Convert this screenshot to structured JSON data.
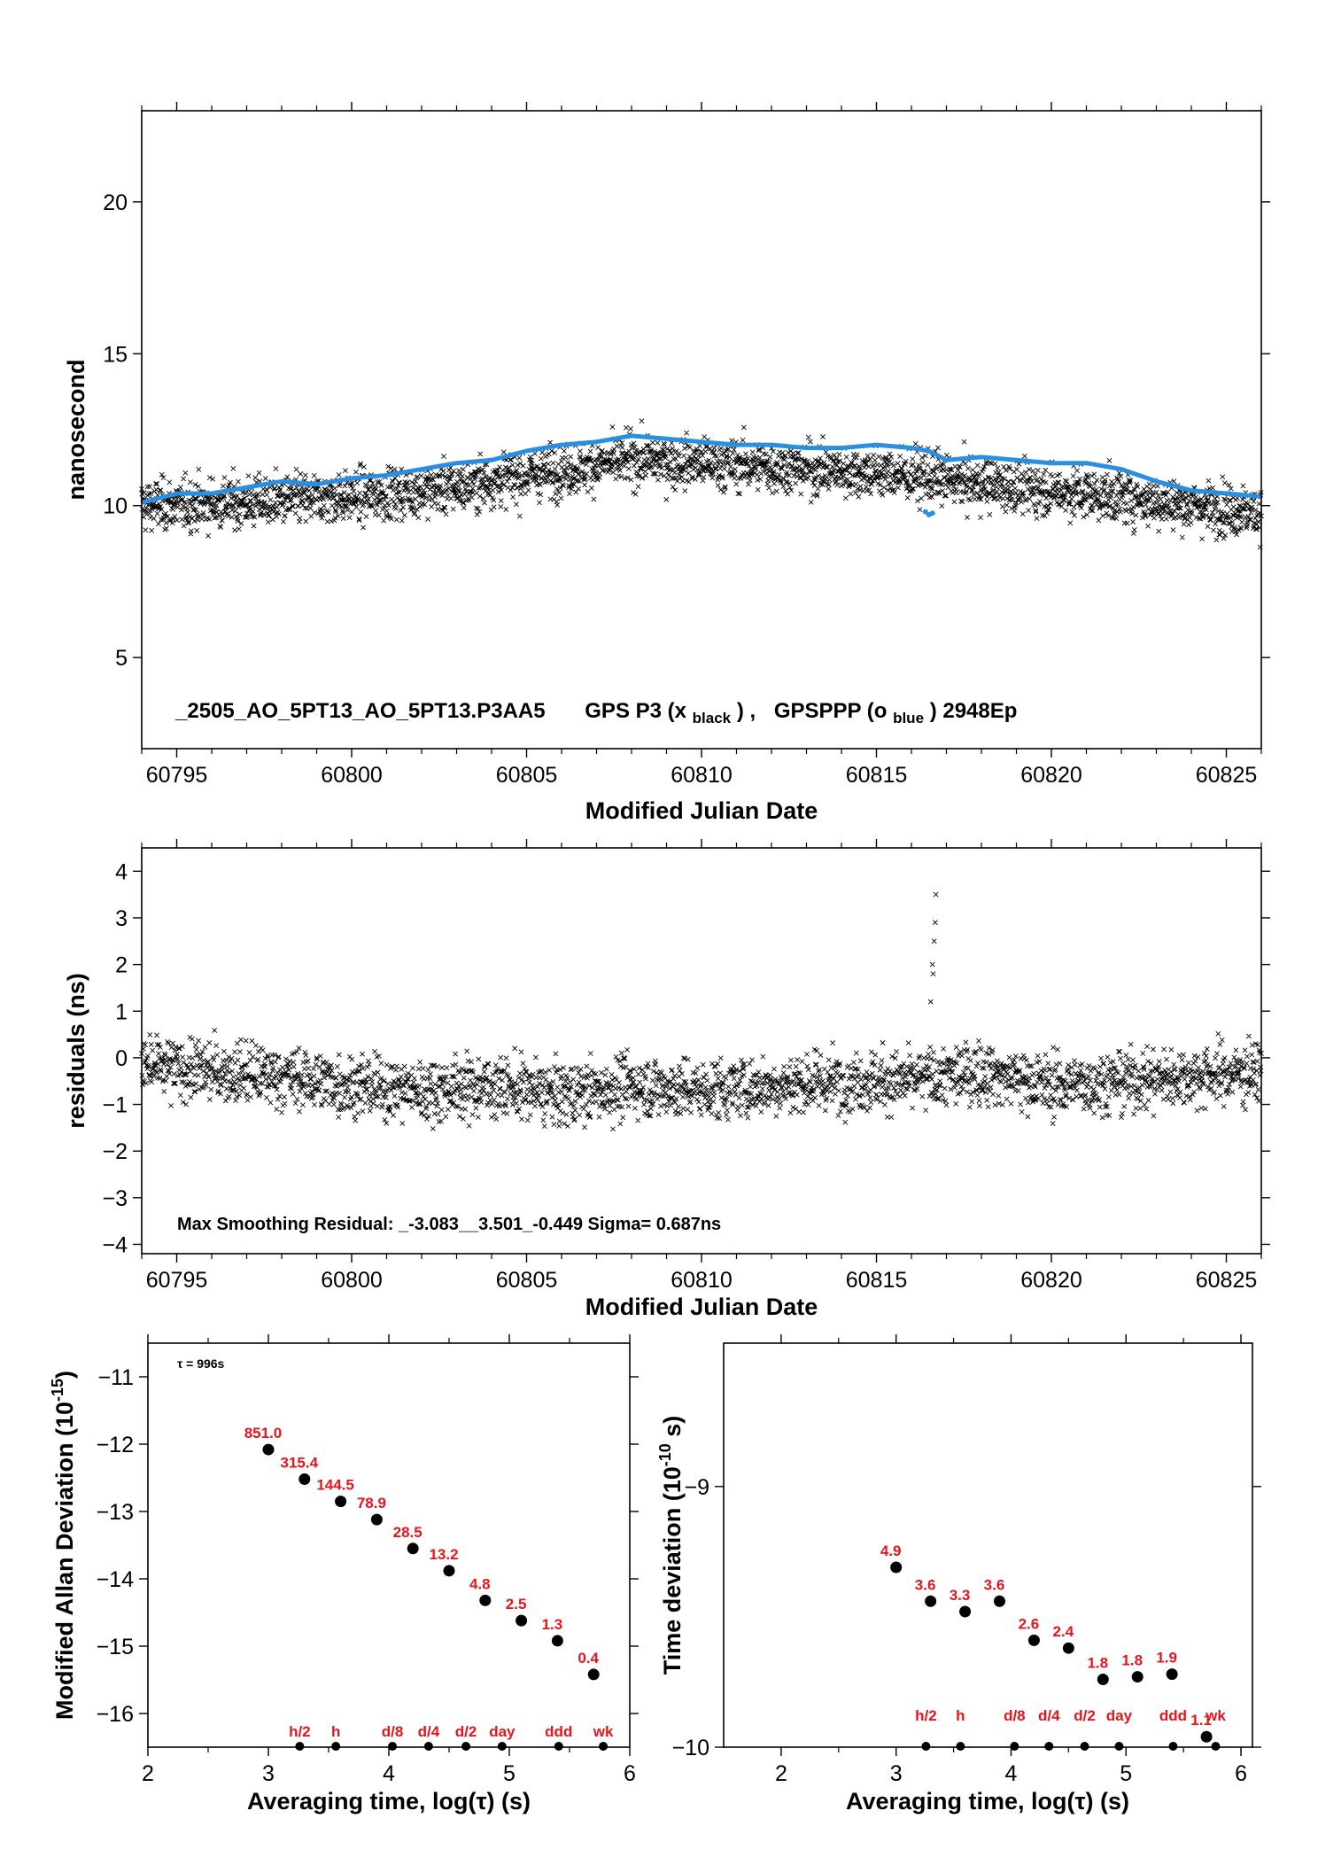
{
  "chart_data": [
    {
      "type": "scatter",
      "ylabel": "nanosecond",
      "xlabel": "Modified Julian Date",
      "xlim": [
        60794,
        60826
      ],
      "ylim": [
        2,
        23
      ],
      "xticks": [
        60795,
        60800,
        60805,
        60810,
        60815,
        60820,
        60825
      ],
      "yticks": [
        5,
        10,
        15,
        20
      ],
      "caption": {
        "file": "_2505_AO_5PT13_AO_5PT13.P3AA5",
        "gps_p3": "GPS P3 (x",
        "gps_p3_sub": "black",
        "sep": ") ,",
        "gpsppp": "GPSPPP (o",
        "gpsppp_sub": "blue",
        "epochs": ")  2948Ep"
      },
      "series": [
        {
          "marker": "x",
          "color": "#000000",
          "trend": [
            [
              60794,
              10.0
            ],
            [
              60797,
              10.1
            ],
            [
              60800,
              10.3
            ],
            [
              60803,
              10.6
            ],
            [
              60805,
              11.0
            ],
            [
              60808,
              11.5
            ],
            [
              60810,
              11.4
            ],
            [
              60813,
              11.2
            ],
            [
              60816,
              11.0
            ],
            [
              60818,
              10.7
            ],
            [
              60821,
              10.4
            ],
            [
              60824,
              10.0
            ],
            [
              60826,
              9.8
            ]
          ],
          "scatter_sd": 0.7,
          "count": 2948
        },
        {
          "marker": "o",
          "color": "#2a8fe0",
          "points": [
            [
              60794,
              10.1
            ],
            [
              60795,
              10.4
            ],
            [
              60796,
              10.4
            ],
            [
              60797,
              10.6
            ],
            [
              60798,
              10.8
            ],
            [
              60799,
              10.7
            ],
            [
              60800,
              10.9
            ],
            [
              60801,
              11.0
            ],
            [
              60802,
              11.2
            ],
            [
              60803,
              11.4
            ],
            [
              60804,
              11.5
            ],
            [
              60805,
              11.8
            ],
            [
              60806,
              12.0
            ],
            [
              60807,
              12.1
            ],
            [
              60808,
              12.3
            ],
            [
              60809,
              12.2
            ],
            [
              60810,
              12.1
            ],
            [
              60811,
              12.0
            ],
            [
              60812,
              12.0
            ],
            [
              60813,
              11.9
            ],
            [
              60814,
              11.9
            ],
            [
              60815,
              12.0
            ],
            [
              60816,
              11.9
            ],
            [
              60816.5,
              11.8
            ],
            [
              60817,
              11.5
            ],
            [
              60818,
              11.6
            ],
            [
              60819,
              11.5
            ],
            [
              60820,
              11.4
            ],
            [
              60821,
              11.4
            ],
            [
              60822,
              11.2
            ],
            [
              60823,
              10.8
            ],
            [
              60824,
              10.5
            ],
            [
              60825,
              10.4
            ],
            [
              60826,
              10.3
            ]
          ],
          "outliers": [
            [
              60816.4,
              9.8
            ],
            [
              60816.5,
              9.7
            ],
            [
              60816.6,
              9.75
            ]
          ]
        }
      ]
    },
    {
      "type": "scatter",
      "ylabel": "residuals (ns)",
      "xlabel": "Modified Julian Date",
      "xlim": [
        60794,
        60826
      ],
      "ylim": [
        -4.2,
        4.5
      ],
      "xticks": [
        60795,
        60800,
        60805,
        60810,
        60815,
        60820,
        60825
      ],
      "yticks": [
        -4,
        -3,
        -2,
        -1,
        0,
        1,
        2,
        3,
        4
      ],
      "annotation": "Max Smoothing Residual: _-3.083__3.501_-0.449  Sigma= 0.687ns",
      "series": [
        {
          "marker": "x",
          "color": "#000000",
          "trend": [
            [
              60794,
              -0.2
            ],
            [
              60796,
              -0.3
            ],
            [
              60798,
              -0.4
            ],
            [
              60800,
              -0.6
            ],
            [
              60802,
              -0.7
            ],
            [
              60804,
              -0.6
            ],
            [
              60806,
              -0.8
            ],
            [
              60808,
              -0.6
            ],
            [
              60810,
              -0.7
            ],
            [
              60812,
              -0.6
            ],
            [
              60814,
              -0.5
            ],
            [
              60816,
              -0.5
            ],
            [
              60818,
              -0.3
            ],
            [
              60820,
              -0.6
            ],
            [
              60822,
              -0.5
            ],
            [
              60824,
              -0.4
            ],
            [
              60826,
              -0.3
            ]
          ],
          "scatter_sd": 0.55,
          "spike": [
            [
              60816.6,
              2.0
            ],
            [
              60816.65,
              2.5
            ],
            [
              60816.7,
              3.5
            ],
            [
              60816.62,
              1.8
            ],
            [
              60816.68,
              2.9
            ],
            [
              60816.55,
              1.2
            ]
          ]
        }
      ]
    },
    {
      "type": "scatter",
      "ylabel": "Modified Allan Deviation (10",
      "ylabel_exp": "-15",
      "ylabel_tail": ")",
      "xlabel": "Averaging time, log(τ) (s)",
      "xlim": [
        2,
        6
      ],
      "ylim": [
        -16.5,
        -10.5
      ],
      "xticks": [
        2,
        3,
        4,
        5,
        6
      ],
      "yticks": [
        -16,
        -15,
        -14,
        -13,
        -12,
        -11
      ],
      "tau_note": "τ = 996s",
      "points": [
        {
          "x": 3.0,
          "y": -12.08,
          "label": "851.0"
        },
        {
          "x": 3.3,
          "y": -12.52,
          "label": "315.4"
        },
        {
          "x": 3.6,
          "y": -12.85,
          "label": "144.5"
        },
        {
          "x": 3.9,
          "y": -13.12,
          "label": "78.9"
        },
        {
          "x": 4.2,
          "y": -13.55,
          "label": "28.5"
        },
        {
          "x": 4.5,
          "y": -13.88,
          "label": "13.2"
        },
        {
          "x": 4.8,
          "y": -14.32,
          "label": "4.8"
        },
        {
          "x": 5.1,
          "y": -14.62,
          "label": "2.5"
        },
        {
          "x": 5.4,
          "y": -14.92,
          "label": "1.3"
        },
        {
          "x": 5.7,
          "y": -15.42,
          "label": "0.4"
        }
      ],
      "markers": [
        {
          "x": 3.26,
          "label": "h/2"
        },
        {
          "x": 3.56,
          "label": "h"
        },
        {
          "x": 4.03,
          "label": "d/8"
        },
        {
          "x": 4.33,
          "label": "d/4"
        },
        {
          "x": 4.64,
          "label": "d/2"
        },
        {
          "x": 4.94,
          "label": "day"
        },
        {
          "x": 5.41,
          "label": "ddd"
        },
        {
          "x": 5.78,
          "label": "wk"
        }
      ]
    },
    {
      "type": "scatter",
      "ylabel": "Time deviation (10",
      "ylabel_exp": "-10",
      "ylabel_tail": " s)",
      "xlabel": "Averaging time, log(τ) (s)",
      "xlim": [
        1.5,
        6.1
      ],
      "ylim": [
        -10,
        -8.45
      ],
      "xticks": [
        2,
        3,
        4,
        5,
        6
      ],
      "yticks": [
        -10,
        -9
      ],
      "points": [
        {
          "x": 3.0,
          "y": -9.31,
          "label": "4.9"
        },
        {
          "x": 3.3,
          "y": -9.44,
          "label": "3.6"
        },
        {
          "x": 3.6,
          "y": -9.48,
          "label": "3.3"
        },
        {
          "x": 3.9,
          "y": -9.44,
          "label": "3.6"
        },
        {
          "x": 4.2,
          "y": -9.59,
          "label": "2.6"
        },
        {
          "x": 4.5,
          "y": -9.62,
          "label": "2.4"
        },
        {
          "x": 4.8,
          "y": -9.74,
          "label": "1.8"
        },
        {
          "x": 5.1,
          "y": -9.73,
          "label": "1.8"
        },
        {
          "x": 5.4,
          "y": -9.72,
          "label": "1.9"
        },
        {
          "x": 5.7,
          "y": -9.96,
          "label": "1.1"
        }
      ],
      "markers": [
        {
          "x": 3.26,
          "label": "h/2"
        },
        {
          "x": 3.56,
          "label": "h"
        },
        {
          "x": 4.03,
          "label": "d/8"
        },
        {
          "x": 4.33,
          "label": "d/4"
        },
        {
          "x": 4.64,
          "label": "d/2"
        },
        {
          "x": 4.94,
          "label": "day"
        },
        {
          "x": 5.41,
          "label": "ddd"
        },
        {
          "x": 5.78,
          "label": "wk"
        }
      ]
    }
  ]
}
